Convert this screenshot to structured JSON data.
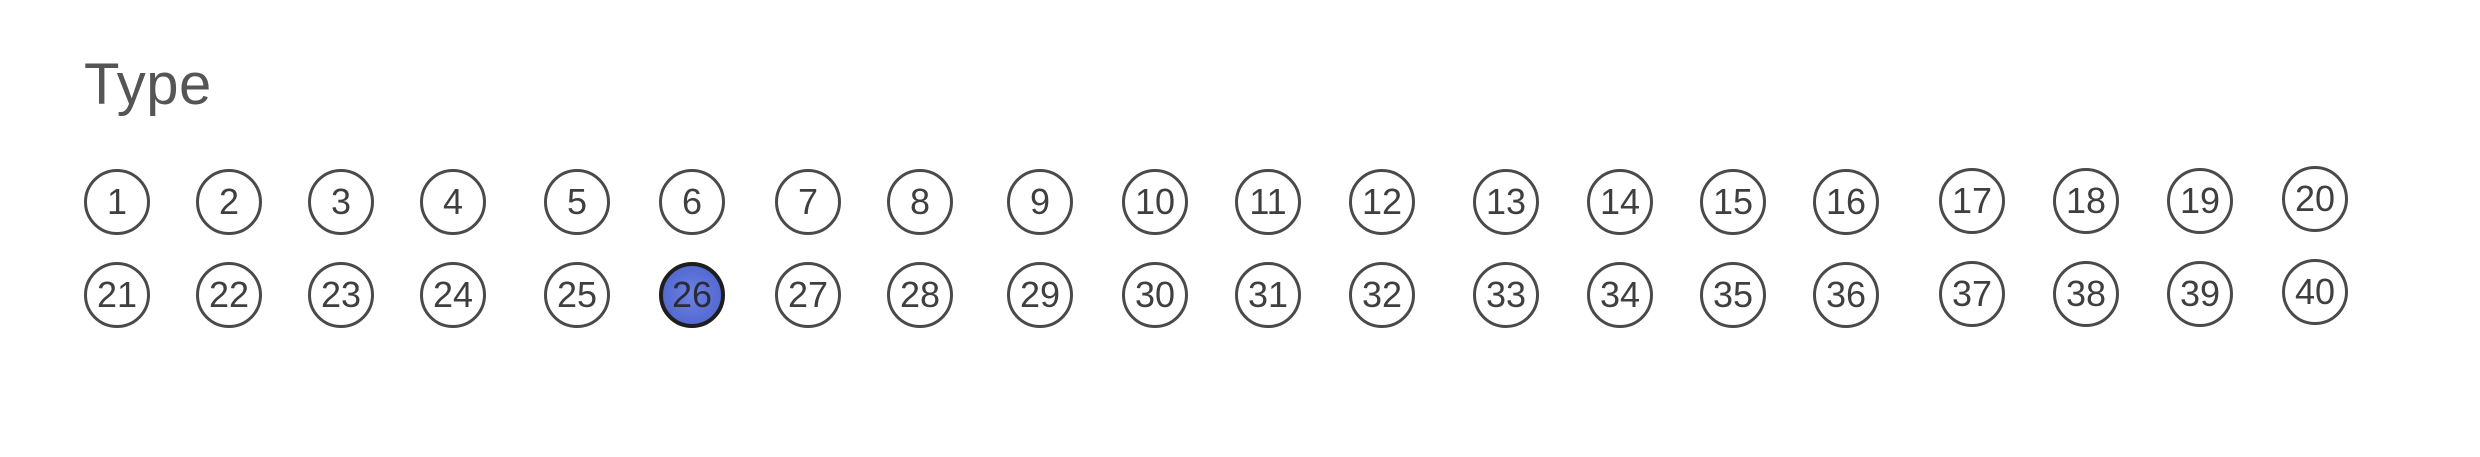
{
  "form": {
    "section_title": "Type",
    "selected_value": "26",
    "selected_color": "#5a6fd6",
    "rows": [
      [
        "1",
        "2",
        "3",
        "4",
        "5",
        "6",
        "7",
        "8",
        "9",
        "10",
        "11",
        "12",
        "13",
        "14",
        "15",
        "16",
        "17",
        "18",
        "19",
        "20"
      ],
      [
        "21",
        "22",
        "23",
        "24",
        "25",
        "26",
        "27",
        "28",
        "29",
        "30",
        "31",
        "32",
        "33",
        "34",
        "35",
        "36",
        "37",
        "38",
        "39",
        "40"
      ]
    ]
  }
}
